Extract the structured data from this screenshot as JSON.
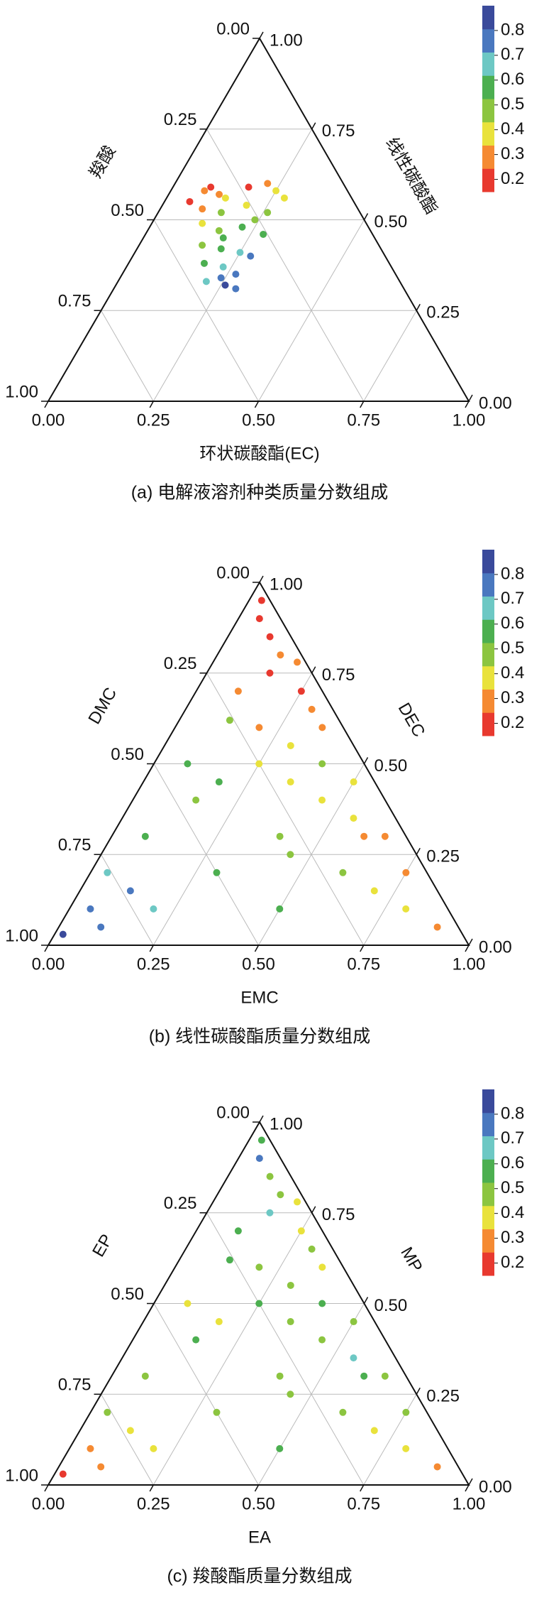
{
  "chart_data": [
    {
      "type": "ternary",
      "title": "(a) 电解液溶剂种类质量分数组成",
      "bottom_label": "环状碳酸酯(EC)",
      "left_label": "羧酸",
      "right_label": "线性碳酸酯",
      "ticks": [
        {
          "value": 0,
          "label": "0.00"
        },
        {
          "value": 0.25,
          "label": "0.25"
        },
        {
          "value": 0.5,
          "label": "0.50"
        },
        {
          "value": 0.75,
          "label": "0.75"
        },
        {
          "value": 1,
          "label": "1.00"
        }
      ],
      "grid": true,
      "colorbar": {
        "clim": [
          0.15,
          0.9
        ],
        "ticks": [
          0.2,
          0.3,
          0.4,
          0.5,
          0.6,
          0.7,
          0.8
        ],
        "colors": [
          "#e8392f",
          "#f58a32",
          "#e9e23c",
          "#8cc540",
          "#4caf50",
          "#6dc8c4",
          "#4a78bf",
          "#3a4a9b"
        ]
      },
      "bottom": [
        0.08,
        0.12,
        0.18,
        0.25,
        0.28,
        0.06,
        0.1,
        0.15,
        0.2,
        0.26,
        0.12,
        0.17,
        0.22,
        0.28,
        0.15,
        0.2,
        0.25,
        0.18,
        0.23,
        0.27,
        0.21,
        0.26,
        0.29,
        0.09,
        0.22,
        0.14,
        0.24,
        0.19,
        0.28,
        0.24
      ],
      "right": [
        0.58,
        0.57,
        0.59,
        0.58,
        0.56,
        0.55,
        0.53,
        0.52,
        0.54,
        0.52,
        0.49,
        0.47,
        0.48,
        0.46,
        0.43,
        0.42,
        0.41,
        0.38,
        0.37,
        0.35,
        0.33,
        0.32,
        0.31,
        0.59,
        0.6,
        0.56,
        0.5,
        0.45,
        0.4,
        0.34
      ],
      "values": [
        0.25,
        0.3,
        0.22,
        0.35,
        0.4,
        0.2,
        0.32,
        0.45,
        0.38,
        0.5,
        0.42,
        0.5,
        0.55,
        0.6,
        0.52,
        0.58,
        0.62,
        0.6,
        0.7,
        0.75,
        0.66,
        0.82,
        0.78,
        0.18,
        0.28,
        0.36,
        0.48,
        0.54,
        0.72,
        0.8
      ]
    },
    {
      "type": "ternary",
      "title": "(b) 线性碳酸酯质量分数组成",
      "bottom_label": "EMC",
      "left_label": "DMC",
      "right_label": "DEC",
      "ticks": [
        {
          "value": 0,
          "label": "0.00"
        },
        {
          "value": 0.25,
          "label": "0.25"
        },
        {
          "value": 0.5,
          "label": "0.50"
        },
        {
          "value": 0.75,
          "label": "0.75"
        },
        {
          "value": 1,
          "label": "1.00"
        }
      ],
      "grid": true,
      "colorbar": {
        "clim": [
          0.15,
          0.9
        ],
        "ticks": [
          0.2,
          0.3,
          0.4,
          0.5,
          0.6,
          0.7,
          0.8
        ],
        "colors": [
          "#e8392f",
          "#f58a32",
          "#e9e23c",
          "#8cc540",
          "#4caf50",
          "#6dc8c4",
          "#4a78bf",
          "#3a4a9b"
        ]
      },
      "bottom": [
        0.02,
        0.05,
        0.1,
        0.04,
        0.12,
        0.08,
        0.2,
        0.15,
        0.3,
        0.25,
        0.4,
        0.35,
        0.5,
        0.45,
        0.6,
        0.55,
        0.7,
        0.65,
        0.8,
        0.75,
        0.9,
        0.1,
        0.2,
        0.3,
        0.15,
        0.25,
        0.4,
        0.35,
        0.1,
        0.05,
        0.2,
        0.12,
        0.3,
        0.45,
        0.18,
        0.08,
        0.6,
        0.5,
        0.03,
        0.15
      ],
      "right": [
        0.03,
        0.1,
        0.05,
        0.2,
        0.15,
        0.3,
        0.1,
        0.4,
        0.2,
        0.5,
        0.3,
        0.6,
        0.1,
        0.4,
        0.2,
        0.35,
        0.15,
        0.3,
        0.1,
        0.2,
        0.05,
        0.7,
        0.6,
        0.55,
        0.75,
        0.7,
        0.5,
        0.45,
        0.85,
        0.9,
        0.78,
        0.62,
        0.65,
        0.25,
        0.45,
        0.5,
        0.3,
        0.45,
        0.95,
        0.8
      ],
      "values": [
        0.85,
        0.8,
        0.78,
        0.7,
        0.72,
        0.6,
        0.65,
        0.5,
        0.55,
        0.4,
        0.5,
        0.3,
        0.55,
        0.4,
        0.45,
        0.35,
        0.4,
        0.3,
        0.35,
        0.25,
        0.3,
        0.25,
        0.3,
        0.35,
        0.2,
        0.22,
        0.45,
        0.4,
        0.2,
        0.18,
        0.28,
        0.45,
        0.3,
        0.5,
        0.55,
        0.6,
        0.32,
        0.38,
        0.2,
        0.25
      ]
    },
    {
      "type": "ternary",
      "title": "(c) 羧酸酯质量分数组成",
      "bottom_label": "EA",
      "left_label": "EP",
      "right_label": "MP",
      "ticks": [
        {
          "value": 0,
          "label": "0.00"
        },
        {
          "value": 0.25,
          "label": "0.25"
        },
        {
          "value": 0.5,
          "label": "0.50"
        },
        {
          "value": 0.75,
          "label": "0.75"
        },
        {
          "value": 1,
          "label": "1.00"
        }
      ],
      "grid": true,
      "colorbar": {
        "clim": [
          0.15,
          0.9
        ],
        "ticks": [
          0.2,
          0.3,
          0.4,
          0.5,
          0.6,
          0.7,
          0.8
        ],
        "colors": [
          "#e8392f",
          "#f58a32",
          "#e9e23c",
          "#8cc540",
          "#4caf50",
          "#6dc8c4",
          "#4a78bf",
          "#3a4a9b"
        ]
      },
      "bottom": [
        0.02,
        0.05,
        0.1,
        0.04,
        0.12,
        0.08,
        0.2,
        0.15,
        0.3,
        0.25,
        0.4,
        0.35,
        0.5,
        0.45,
        0.6,
        0.55,
        0.7,
        0.65,
        0.8,
        0.75,
        0.9,
        0.1,
        0.2,
        0.3,
        0.15,
        0.25,
        0.4,
        0.35,
        0.1,
        0.05,
        0.2,
        0.12,
        0.3,
        0.45,
        0.18,
        0.08,
        0.6,
        0.5,
        0.03,
        0.15
      ],
      "right": [
        0.03,
        0.1,
        0.05,
        0.2,
        0.15,
        0.3,
        0.1,
        0.4,
        0.2,
        0.5,
        0.3,
        0.6,
        0.1,
        0.4,
        0.2,
        0.35,
        0.15,
        0.3,
        0.1,
        0.2,
        0.05,
        0.7,
        0.6,
        0.55,
        0.75,
        0.7,
        0.5,
        0.45,
        0.85,
        0.9,
        0.78,
        0.62,
        0.65,
        0.25,
        0.45,
        0.5,
        0.3,
        0.45,
        0.95,
        0.8
      ],
      "values": [
        0.2,
        0.25,
        0.3,
        0.45,
        0.35,
        0.5,
        0.4,
        0.55,
        0.45,
        0.6,
        0.5,
        0.4,
        0.55,
        0.45,
        0.5,
        0.65,
        0.4,
        0.5,
        0.35,
        0.45,
        0.3,
        0.6,
        0.45,
        0.5,
        0.7,
        0.4,
        0.55,
        0.45,
        0.5,
        0.75,
        0.4,
        0.6,
        0.45,
        0.5,
        0.4,
        0.35,
        0.55,
        0.45,
        0.6,
        0.5
      ]
    }
  ]
}
